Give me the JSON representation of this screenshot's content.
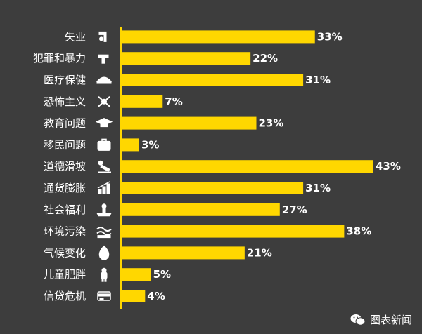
{
  "colors": {
    "background": "#3d3d3d",
    "bar": "#ffd700",
    "axis": "#ffd700",
    "text": "#ffffff"
  },
  "watermark": {
    "text": "图表新闻",
    "icon": "wechat-icon"
  },
  "chart_data": {
    "type": "bar",
    "orientation": "horizontal",
    "categories": [
      "失业",
      "犯罪和暴力",
      "医疗保健",
      "恐怖主义",
      "教育问题",
      "移民问题",
      "道德滑坡",
      "通货膨胀",
      "社会福利",
      "环境污染",
      "气候变化",
      "儿童肥胖",
      "信贷危机"
    ],
    "values": [
      33,
      22,
      31,
      7,
      23,
      3,
      43,
      31,
      27,
      38,
      21,
      5,
      4
    ],
    "value_labels": [
      "33%",
      "22%",
      "31%",
      "7%",
      "23%",
      "3%",
      "43%",
      "31%",
      "27%",
      "38%",
      "21%",
      "5%",
      "4%"
    ],
    "icons": [
      "unemployment-icon",
      "gun-icon",
      "nurse-cap-icon",
      "crossed-swords-skull-icon",
      "graduation-cap-icon",
      "suitcase-icon",
      "fallen-figure-icon",
      "rising-bars-icon",
      "hand-with-person-icon",
      "polluted-water-icon",
      "flame-icon",
      "child-icon",
      "credit-card-icon"
    ],
    "title": "",
    "xlabel": "",
    "ylabel": "",
    "xlim": [
      0,
      45
    ],
    "grid": false,
    "legend": "none"
  }
}
